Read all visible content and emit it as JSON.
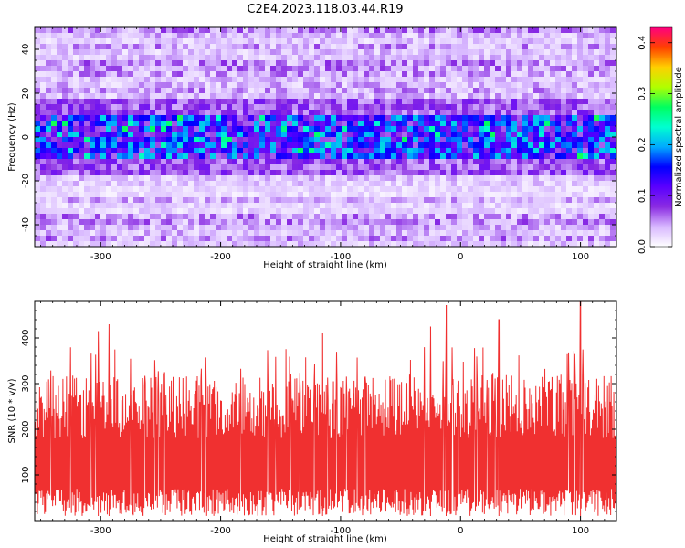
{
  "title": "C2E4.2023.118.03.44.R19",
  "chart_data": [
    {
      "type": "heatmap",
      "xlabel": "Height of straight line (km)",
      "ylabel": "Frequency (Hz)",
      "xlim": [
        -355,
        130
      ],
      "ylim": [
        -50,
        50
      ],
      "x_ticks": [
        -300,
        -200,
        -100,
        0,
        100
      ],
      "y_ticks": [
        -40,
        -20,
        0,
        20,
        40
      ],
      "colorbar": {
        "label": "Normalized spectral amplitude",
        "range": [
          0.0,
          0.43
        ],
        "ticks": [
          0.0,
          0.1,
          0.2,
          0.3,
          0.4
        ],
        "colormap": [
          "#ffffff",
          "#d8b8ff",
          "#8a2be2",
          "#5a00ff",
          "#0000ff",
          "#00aaff",
          "#00ffd0",
          "#00ff60",
          "#b0ff00",
          "#ffd000",
          "#ff4000",
          "#ff007f"
        ]
      },
      "description": "Dense noisy spectrogram; strongest amplitude (about 0.1-0.25) concentrated in a horizontal band near 0 Hz (about -10 to +10 Hz), background mostly 0-0.05 across all heights.",
      "band_center_hz": 0,
      "band_halfwidth_hz": 10
    },
    {
      "type": "area",
      "xlabel": "Height of straight line (km)",
      "ylabel": "SNR (10 * v/v)",
      "xlim": [
        -355,
        130
      ],
      "ylim": [
        0,
        480
      ],
      "x_ticks": [
        -300,
        -200,
        -100,
        0,
        100
      ],
      "y_ticks": [
        100,
        200,
        300,
        400
      ],
      "color": "#f03030",
      "description": "Dense noisy SNR trace between about 10 and 300, with spikes up to about 480.",
      "typical_range": [
        10,
        300
      ],
      "peaks": [
        {
          "x": -302,
          "y": 415
        },
        {
          "x": -293,
          "y": 430
        },
        {
          "x": -115,
          "y": 410
        },
        {
          "x": -25,
          "y": 425
        },
        {
          "x": -12,
          "y": 472
        },
        {
          "x": 32,
          "y": 440
        },
        {
          "x": 100,
          "y": 480
        }
      ]
    }
  ]
}
